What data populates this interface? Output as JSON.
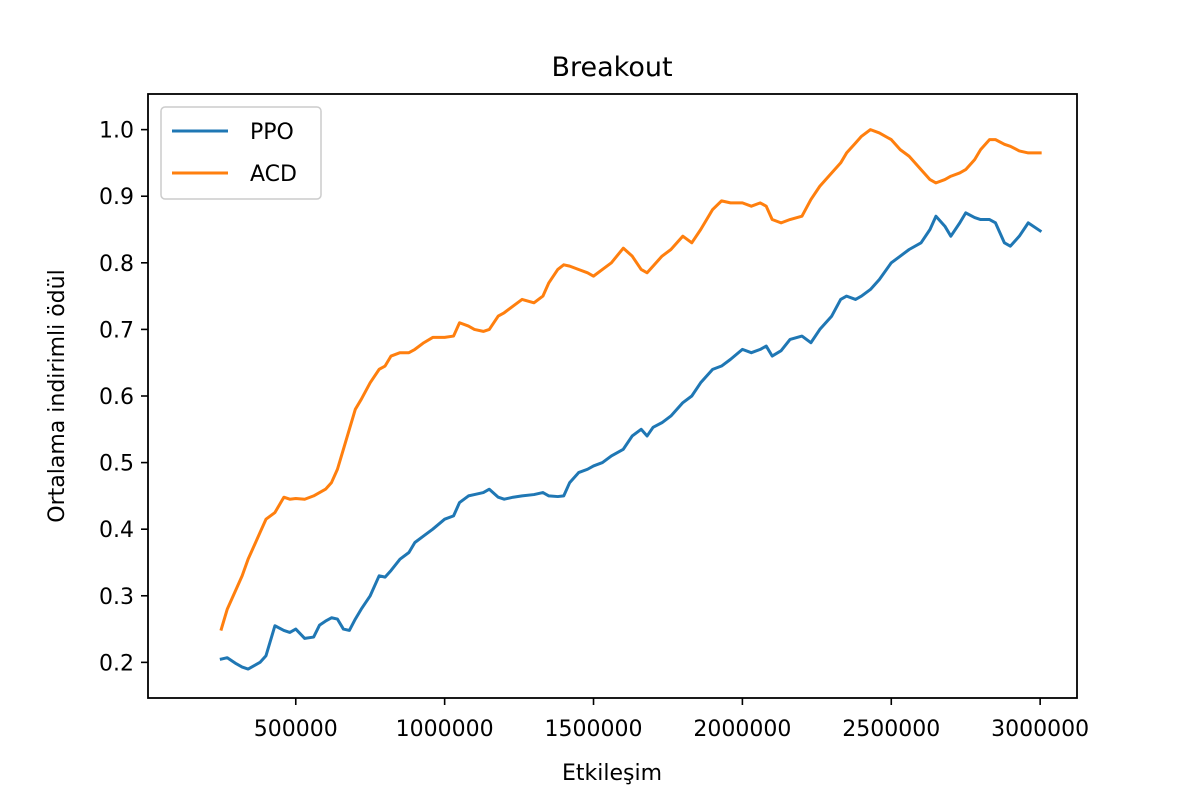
{
  "chart_data": {
    "type": "line",
    "title": "Breakout",
    "xlabel": "Etkileşim",
    "ylabel": "Ortalama indirimli ödül",
    "xlim": [
      3750,
      3123750
    ],
    "ylim": [
      0.1465,
      1.0535
    ],
    "xticks": [
      500000,
      1000000,
      1500000,
      2000000,
      2500000,
      3000000
    ],
    "xtick_labels": [
      "500000",
      "1000000",
      "1500000",
      "2000000",
      "2500000",
      "3000000"
    ],
    "yticks": [
      0.2,
      0.3,
      0.4,
      0.5,
      0.6,
      0.7,
      0.8,
      0.9,
      1.0
    ],
    "ytick_labels": [
      "0.2",
      "0.3",
      "0.4",
      "0.5",
      "0.6",
      "0.7",
      "0.8",
      "0.9",
      "1.0"
    ],
    "grid": false,
    "legend_position": "upper-left",
    "series": [
      {
        "name": "PPO",
        "color": "#1f77b4",
        "x": [
          250000,
          270000,
          300000,
          320000,
          340000,
          360000,
          380000,
          400000,
          430000,
          460000,
          480000,
          500000,
          530000,
          560000,
          580000,
          600000,
          620000,
          640000,
          660000,
          680000,
          700000,
          720000,
          750000,
          780000,
          800000,
          820000,
          850000,
          880000,
          900000,
          930000,
          960000,
          1000000,
          1030000,
          1050000,
          1080000,
          1100000,
          1130000,
          1150000,
          1180000,
          1200000,
          1230000,
          1260000,
          1300000,
          1330000,
          1350000,
          1380000,
          1400000,
          1420000,
          1450000,
          1480000,
          1500000,
          1530000,
          1560000,
          1600000,
          1630000,
          1660000,
          1680000,
          1700000,
          1730000,
          1760000,
          1800000,
          1830000,
          1860000,
          1880000,
          1900000,
          1930000,
          1960000,
          2000000,
          2030000,
          2060000,
          2080000,
          2100000,
          2130000,
          2160000,
          2200000,
          2230000,
          2260000,
          2300000,
          2330000,
          2350000,
          2380000,
          2400000,
          2430000,
          2460000,
          2500000,
          2530000,
          2560000,
          2600000,
          2630000,
          2650000,
          2680000,
          2700000,
          2730000,
          2750000,
          2780000,
          2800000,
          2830000,
          2850000,
          2880000,
          2900000,
          2930000,
          2960000,
          3000000
        ],
        "y": [
          0.205,
          0.207,
          0.198,
          0.193,
          0.19,
          0.195,
          0.2,
          0.21,
          0.255,
          0.248,
          0.245,
          0.25,
          0.236,
          0.238,
          0.256,
          0.262,
          0.267,
          0.265,
          0.25,
          0.248,
          0.265,
          0.28,
          0.3,
          0.33,
          0.328,
          0.338,
          0.355,
          0.365,
          0.38,
          0.39,
          0.4,
          0.415,
          0.42,
          0.44,
          0.45,
          0.452,
          0.455,
          0.46,
          0.448,
          0.445,
          0.448,
          0.45,
          0.452,
          0.455,
          0.45,
          0.449,
          0.45,
          0.47,
          0.485,
          0.49,
          0.495,
          0.5,
          0.51,
          0.52,
          0.54,
          0.55,
          0.54,
          0.553,
          0.56,
          0.57,
          0.59,
          0.6,
          0.62,
          0.63,
          0.64,
          0.645,
          0.655,
          0.67,
          0.665,
          0.67,
          0.675,
          0.66,
          0.668,
          0.685,
          0.69,
          0.68,
          0.7,
          0.72,
          0.745,
          0.75,
          0.745,
          0.75,
          0.76,
          0.775,
          0.8,
          0.81,
          0.82,
          0.83,
          0.85,
          0.87,
          0.855,
          0.84,
          0.86,
          0.875,
          0.868,
          0.865,
          0.865,
          0.86,
          0.83,
          0.825,
          0.84,
          0.86,
          0.848
        ]
      },
      {
        "name": "ACD",
        "color": "#ff7f0e",
        "x": [
          250000,
          270000,
          300000,
          320000,
          340000,
          360000,
          380000,
          400000,
          430000,
          460000,
          480000,
          500000,
          530000,
          560000,
          580000,
          600000,
          620000,
          640000,
          660000,
          680000,
          700000,
          720000,
          750000,
          780000,
          800000,
          820000,
          850000,
          880000,
          900000,
          930000,
          960000,
          1000000,
          1030000,
          1050000,
          1080000,
          1100000,
          1130000,
          1150000,
          1180000,
          1200000,
          1230000,
          1260000,
          1300000,
          1330000,
          1350000,
          1380000,
          1400000,
          1420000,
          1450000,
          1480000,
          1500000,
          1530000,
          1560000,
          1600000,
          1630000,
          1660000,
          1680000,
          1700000,
          1730000,
          1760000,
          1800000,
          1830000,
          1860000,
          1880000,
          1900000,
          1930000,
          1960000,
          2000000,
          2030000,
          2060000,
          2080000,
          2100000,
          2130000,
          2160000,
          2200000,
          2230000,
          2260000,
          2300000,
          2330000,
          2350000,
          2380000,
          2400000,
          2430000,
          2460000,
          2500000,
          2530000,
          2560000,
          2600000,
          2630000,
          2650000,
          2680000,
          2700000,
          2730000,
          2750000,
          2780000,
          2800000,
          2830000,
          2850000,
          2880000,
          2900000,
          2930000,
          2960000,
          3000000
        ],
        "y": [
          0.25,
          0.28,
          0.31,
          0.33,
          0.355,
          0.375,
          0.395,
          0.415,
          0.425,
          0.448,
          0.445,
          0.446,
          0.445,
          0.45,
          0.455,
          0.46,
          0.47,
          0.49,
          0.52,
          0.55,
          0.58,
          0.595,
          0.62,
          0.64,
          0.645,
          0.66,
          0.665,
          0.665,
          0.67,
          0.68,
          0.688,
          0.688,
          0.69,
          0.71,
          0.705,
          0.7,
          0.697,
          0.7,
          0.72,
          0.725,
          0.735,
          0.745,
          0.74,
          0.75,
          0.77,
          0.79,
          0.797,
          0.795,
          0.79,
          0.785,
          0.78,
          0.79,
          0.8,
          0.822,
          0.81,
          0.79,
          0.785,
          0.795,
          0.81,
          0.82,
          0.84,
          0.83,
          0.85,
          0.865,
          0.88,
          0.893,
          0.89,
          0.89,
          0.885,
          0.89,
          0.885,
          0.865,
          0.86,
          0.865,
          0.87,
          0.895,
          0.915,
          0.935,
          0.95,
          0.965,
          0.98,
          0.99,
          1.0,
          0.995,
          0.985,
          0.97,
          0.96,
          0.94,
          0.925,
          0.92,
          0.925,
          0.93,
          0.935,
          0.94,
          0.955,
          0.97,
          0.985,
          0.985,
          0.978,
          0.975,
          0.968,
          0.965,
          0.965
        ]
      }
    ]
  }
}
